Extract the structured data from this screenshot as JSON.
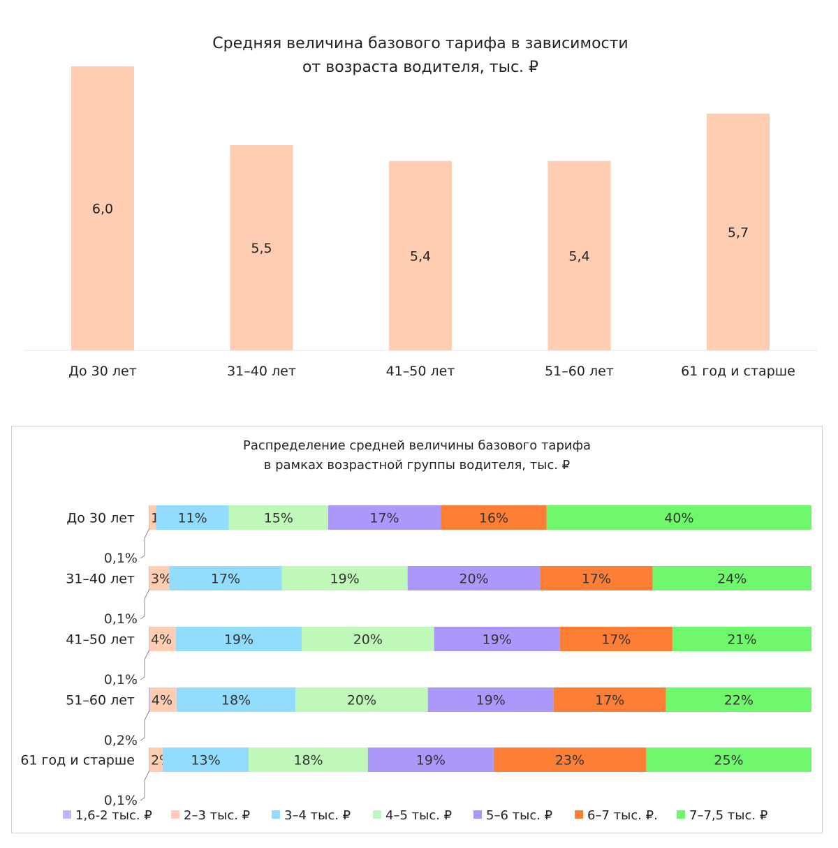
{
  "chart_data": [
    {
      "type": "bar",
      "title_lines": [
        "Средняя величина базового тарифа в зависимости",
        "от возраста водителя, тыс. ₽"
      ],
      "categories": [
        "До 30 лет",
        "31–40 лет",
        "41–50 лет",
        "51–60 лет",
        "61 год и старше"
      ],
      "values": [
        6.0,
        5.5,
        5.4,
        5.4,
        5.7
      ],
      "value_labels": [
        "6,0",
        "5,5",
        "5,4",
        "5,4",
        "5,7"
      ],
      "ylim": [
        4.2,
        6.0
      ],
      "xlabel": "",
      "ylabel": "",
      "color": "#ffcdb2",
      "axis_color": "#e4e4e4"
    },
    {
      "type": "stacked_bar_horizontal",
      "title_lines": [
        "Распределение средней величины базового тарифа",
        "в рамках возрастной группы водителя, тыс. ₽"
      ],
      "categories": [
        "До 30 лет",
        "31–40 лет",
        "41–50 лет",
        "51–60 лет",
        "61 год и старше"
      ],
      "series": [
        {
          "name": "1,6-2 тыс. ₽",
          "color": "#c2b4f7",
          "values": [
            0.1,
            0.1,
            0.1,
            0.2,
            0.1
          ],
          "labels": [
            "0,1%",
            "0,1%",
            "0,1%",
            "0,2%",
            "0,1%"
          ]
        },
        {
          "name": "2–3 тыс. ₽",
          "color": "#ffcdb2",
          "values": [
            1,
            3,
            4,
            4,
            2
          ],
          "labels": [
            "1%",
            "3%",
            "4%",
            "4%",
            "2%"
          ]
        },
        {
          "name": "3–4 тыс. ₽",
          "color": "#92dcfd",
          "values": [
            11,
            17,
            19,
            18,
            13
          ],
          "labels": [
            "11%",
            "17%",
            "19%",
            "18%",
            "13%"
          ]
        },
        {
          "name": "4–5 тыс. ₽",
          "color": "#bff8b8",
          "values": [
            15,
            19,
            20,
            20,
            18
          ],
          "labels": [
            "15%",
            "19%",
            "20%",
            "20%",
            "18%"
          ]
        },
        {
          "name": "5–6 тыс. ₽",
          "color": "#ac98fa",
          "values": [
            17,
            20,
            19,
            19,
            19
          ],
          "labels": [
            "17%",
            "20%",
            "19%",
            "19%",
            "19%"
          ]
        },
        {
          "name": "6–7 тыс. ₽.",
          "color": "#fd7f35",
          "values": [
            16,
            17,
            17,
            17,
            23
          ],
          "labels": [
            "16%",
            "17%",
            "17%",
            "17%",
            "23%"
          ]
        },
        {
          "name": "7–7,5 тыс. ₽",
          "color": "#6ff86b",
          "values": [
            40,
            24,
            21,
            22,
            25
          ],
          "labels": [
            "40%",
            "24%",
            "21%",
            "22%",
            "25%"
          ]
        }
      ],
      "legend_position": "bottom",
      "panel_border_color": "#cfcfcf"
    }
  ]
}
